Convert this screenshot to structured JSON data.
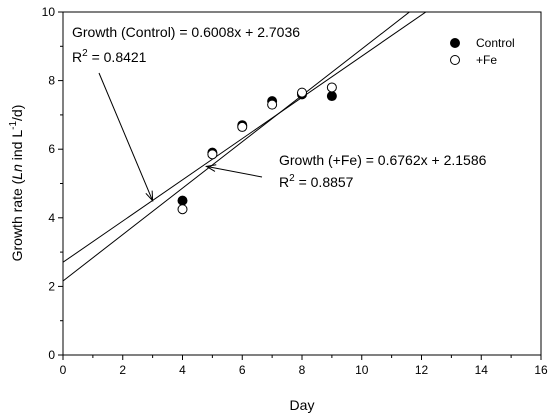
{
  "chart_data": {
    "type": "scatter",
    "xlabel": "Day",
    "ylabel": {
      "prefix": "Growth rate (",
      "italic": "Ln",
      "mid": " ind L",
      "sup": "-1",
      "suffix": "/d)"
    },
    "xlim": [
      0,
      16
    ],
    "ylim": [
      0,
      10
    ],
    "x_ticks": [
      "0",
      "2",
      "4",
      "6",
      "8",
      "10",
      "12",
      "14",
      "16"
    ],
    "y_ticks": [
      "0",
      "2",
      "4",
      "6",
      "8",
      "10"
    ],
    "grid": false,
    "legend_position": "top-right",
    "series": [
      {
        "name": "Control",
        "marker": "filled-circle",
        "color": "#000000",
        "x": [
          4,
          5,
          6,
          7,
          8,
          9
        ],
        "y": [
          4.5,
          5.9,
          6.7,
          7.4,
          7.6,
          7.55
        ]
      },
      {
        "name": "+Fe",
        "marker": "open-circle",
        "color": "#000000",
        "x": [
          4,
          5,
          6,
          7,
          8,
          9
        ],
        "y": [
          4.25,
          5.85,
          6.65,
          7.3,
          7.65,
          7.8
        ]
      }
    ],
    "fits": [
      {
        "series": "Control",
        "slope": 0.6008,
        "intercept": 2.7036,
        "equation": "Growth (Control) = 0.6008x + 2.7036",
        "r2_base": "R",
        "r2_sup": "2",
        "r2_value": " = 0.8421",
        "arrow_target": [
          3,
          4.5
        ]
      },
      {
        "series": "+Fe",
        "slope": 0.6762,
        "intercept": 2.1586,
        "equation": "Growth (+Fe) = 0.6762x + 2.1586",
        "r2_base": "R",
        "r2_sup": "2",
        "r2_value": " = 0.8857",
        "arrow_target": [
          4.8,
          5.5
        ]
      }
    ]
  }
}
